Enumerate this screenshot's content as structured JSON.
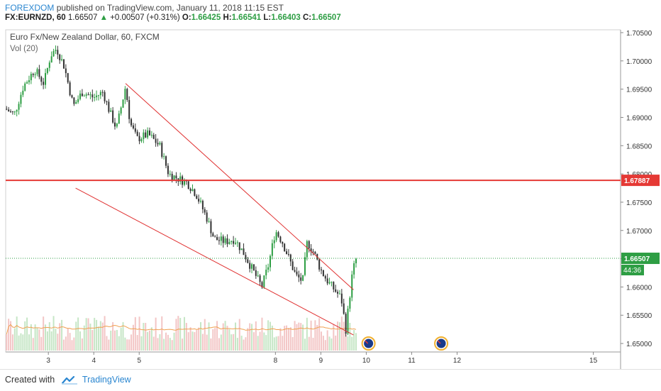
{
  "header": {
    "publisher": "FOREXDOM",
    "published_text": "published on TradingView.com, January 11, 2018 11:15 EST",
    "symbol": "FX:EURNZD, 60",
    "last": "1.66507",
    "change": "+0.00507 (+0.31%)",
    "o_label": "O:",
    "o_value": "1.66425",
    "h_label": "H:",
    "h_value": "1.66541",
    "l_label": "L:",
    "l_value": "1.66403",
    "c_label": "C:",
    "c_value": "1.66507"
  },
  "footer": {
    "created_with": "Created with",
    "brand": "TradingView"
  },
  "colors": {
    "up": "#2e9e44",
    "down": "#333333",
    "trendline": "#e03030",
    "resistance": "#e53935",
    "vol_up": "#c6e6c6",
    "vol_down": "#f3c6c6",
    "vol_ma": "#f0a050",
    "brand": "#2a86d0"
  },
  "chart_data": {
    "type": "candlestick",
    "title": "Euro Fx/New Zealand Dollar, 60, FXCM",
    "indicator": "Vol (20)",
    "y_range": [
      1.6485,
      1.7055
    ],
    "y_ticks": [
      "1.70500",
      "1.70000",
      "1.69500",
      "1.69000",
      "1.68500",
      "1.68000",
      "1.67500",
      "1.67000",
      "1.66500",
      "1.66000",
      "1.65500",
      "1.65000"
    ],
    "x_range": [
      2.06,
      15.6
    ],
    "x_ticks": [
      {
        "label": "3",
        "x": 3
      },
      {
        "label": "4",
        "x": 4
      },
      {
        "label": "5",
        "x": 5
      },
      {
        "label": "8",
        "x": 8
      },
      {
        "label": "9",
        "x": 9
      },
      {
        "label": "10",
        "x": 10
      },
      {
        "label": "11",
        "x": 11
      },
      {
        "label": "12",
        "x": 12
      },
      {
        "label": "15",
        "x": 15
      }
    ],
    "anchors": [
      [
        2.06,
        1.6915
      ],
      [
        2.25,
        1.6905
      ],
      [
        2.45,
        1.6955
      ],
      [
        2.7,
        1.6985
      ],
      [
        2.9,
        1.696
      ],
      [
        3.05,
        1.701
      ],
      [
        3.18,
        1.7022
      ],
      [
        3.35,
        1.699
      ],
      [
        3.55,
        1.692
      ],
      [
        3.75,
        1.6945
      ],
      [
        4.0,
        1.6935
      ],
      [
        4.2,
        1.6945
      ],
      [
        4.35,
        1.691
      ],
      [
        4.5,
        1.688
      ],
      [
        4.62,
        1.6925
      ],
      [
        4.7,
        1.6955
      ],
      [
        4.8,
        1.689
      ],
      [
        4.95,
        1.6862
      ],
      [
        5.2,
        1.687
      ],
      [
        5.45,
        1.685
      ],
      [
        5.65,
        1.68
      ],
      [
        5.85,
        1.6792
      ],
      [
        6.05,
        1.6785
      ],
      [
        6.25,
        1.6765
      ],
      [
        6.5,
        1.672
      ],
      [
        6.65,
        1.6685
      ],
      [
        6.9,
        1.668
      ],
      [
        7.1,
        1.6685
      ],
      [
        7.3,
        1.666
      ],
      [
        7.5,
        1.663
      ],
      [
        7.7,
        1.66
      ],
      [
        7.85,
        1.664
      ],
      [
        8.0,
        1.67
      ],
      [
        8.15,
        1.668
      ],
      [
        8.3,
        1.665
      ],
      [
        8.45,
        1.662
      ],
      [
        8.6,
        1.661
      ],
      [
        8.7,
        1.668
      ],
      [
        8.85,
        1.666
      ],
      [
        9.0,
        1.663
      ],
      [
        9.15,
        1.661
      ],
      [
        9.3,
        1.6595
      ],
      [
        9.45,
        1.658
      ],
      [
        9.55,
        1.6525
      ],
      [
        9.7,
        1.6628
      ],
      [
        9.78,
        1.665
      ]
    ],
    "volume_range": [
      0,
      1000
    ],
    "current_price": {
      "label": "1.66507",
      "value": 1.66507
    },
    "countdown": "44:36",
    "resistance_level": {
      "label": "1.67887",
      "value": 1.67887
    },
    "trendlines": [
      {
        "x1": 4.7,
        "y1": 1.696,
        "x2": 9.72,
        "y2": 1.6595
      },
      {
        "x1": 3.6,
        "y1": 1.6775,
        "x2": 9.72,
        "y2": 1.6515
      }
    ],
    "event_markers": [
      {
        "x": 10.05
      },
      {
        "x": 11.65
      }
    ]
  }
}
